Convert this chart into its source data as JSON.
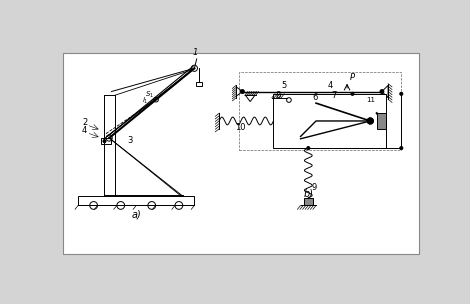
{
  "bg_color": "#d4d4d4",
  "inner_bg": "#ffffff",
  "line_color": "#000000",
  "fig_width": 4.7,
  "fig_height": 3.04,
  "dpi": 100,
  "label_a": "a)",
  "label_b": "b)"
}
